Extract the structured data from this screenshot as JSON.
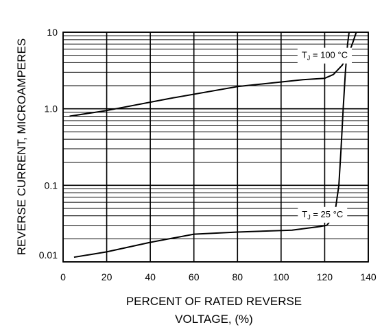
{
  "chart_data": {
    "type": "line",
    "x_scale": "linear",
    "y_scale": "log",
    "xlim": [
      0,
      140
    ],
    "ylim": [
      0.01,
      10
    ],
    "grid": true,
    "xlabel_lines": [
      "PERCENT OF RATED REVERSE",
      "VOLTAGE, (%)"
    ],
    "ylabel": "REVERSE CURRENT, MICROAMPERES",
    "x_ticks": [
      {
        "value": 0,
        "label": "0"
      },
      {
        "value": 20,
        "label": "20"
      },
      {
        "value": 40,
        "label": "40"
      },
      {
        "value": 60,
        "label": "60"
      },
      {
        "value": 80,
        "label": "80"
      },
      {
        "value": 100,
        "label": "100"
      },
      {
        "value": 120,
        "label": "120"
      },
      {
        "value": 140,
        "label": "140"
      }
    ],
    "y_ticks": [
      {
        "value": 10,
        "label": "10"
      },
      {
        "value": 1,
        "label": "1.0"
      },
      {
        "value": 0.1,
        "label": "0.1"
      },
      {
        "value": 0.01,
        "label": "0.01"
      }
    ],
    "series": [
      {
        "points": [
          [
            3,
            0.8
          ],
          [
            20,
            0.95
          ],
          [
            50,
            1.38
          ],
          [
            80,
            1.95
          ],
          [
            110,
            2.4
          ],
          [
            120,
            2.5
          ],
          [
            124,
            2.8
          ],
          [
            128,
            3.7
          ],
          [
            131,
            5.2
          ],
          [
            133,
            7.5
          ],
          [
            134.5,
            11
          ]
        ],
        "annotation": {
          "prefix": "T",
          "subscript": "J",
          "suffix": " = 100 °C",
          "x": 120,
          "y": 5.1
        }
      },
      {
        "points": [
          [
            5,
            0.0115
          ],
          [
            20,
            0.0135
          ],
          [
            40,
            0.018
          ],
          [
            60,
            0.023
          ],
          [
            80,
            0.0245
          ],
          [
            105,
            0.026
          ],
          [
            118,
            0.029
          ],
          [
            121,
            0.03
          ],
          [
            123,
            0.036
          ],
          [
            125,
            0.05
          ],
          [
            126.5,
            0.1
          ],
          [
            127.5,
            0.3
          ],
          [
            128.5,
            1
          ],
          [
            129.5,
            3
          ],
          [
            130.5,
            7
          ],
          [
            131.2,
            11
          ]
        ],
        "annotation": {
          "prefix": "T",
          "subscript": "J",
          "suffix": " = 25 °C",
          "x": 119,
          "y": 0.0425
        }
      }
    ],
    "colors": {
      "line": "#000000",
      "grid": "#000000",
      "background": "#ffffff"
    }
  }
}
